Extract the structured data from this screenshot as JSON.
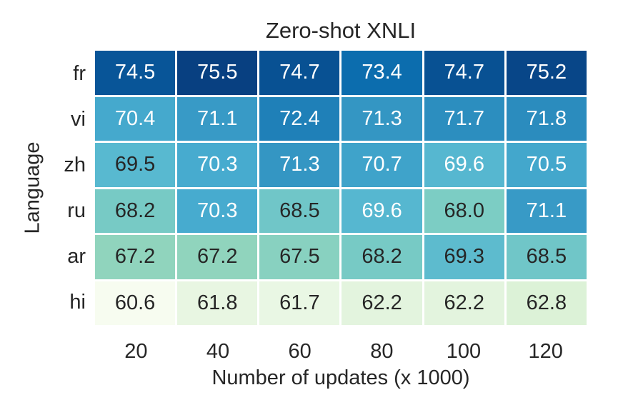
{
  "colors": {
    "background": "#ffffff",
    "text": "#262626",
    "cell_gap": "#ffffff",
    "annotation_light": "#ffffff",
    "annotation_dark": "#262626"
  },
  "chart_data": {
    "type": "heatmap",
    "title": "Zero-shot XNLI",
    "xlabel": "Number of updates (x 1000)",
    "ylabel": "Language",
    "x_categories": [
      "20",
      "40",
      "60",
      "80",
      "100",
      "120"
    ],
    "y_categories": [
      "fr",
      "vi",
      "zh",
      "ru",
      "ar",
      "hi"
    ],
    "values": [
      [
        74.5,
        75.5,
        74.7,
        73.4,
        74.7,
        75.2
      ],
      [
        70.4,
        71.1,
        72.4,
        71.3,
        71.7,
        71.8
      ],
      [
        69.5,
        70.3,
        71.3,
        70.7,
        69.6,
        70.5
      ],
      [
        68.2,
        70.3,
        68.5,
        69.6,
        68.0,
        71.1
      ],
      [
        67.2,
        67.2,
        67.5,
        68.2,
        69.3,
        68.5
      ],
      [
        60.6,
        61.8,
        61.7,
        62.2,
        62.2,
        62.8
      ]
    ],
    "value_format_decimals": 1,
    "colormap": "GnBu",
    "vmin": 60.6,
    "vmax": 75.5,
    "grid_on": false,
    "legend": "none",
    "cell_colors": [
      [
        "#085598",
        "#084081",
        "#085193",
        "#0c6dae",
        "#085193",
        "#084688"
      ],
      [
        "#45a9cd",
        "#389ac6",
        "#1f80b8",
        "#3496c3",
        "#2c8ebf",
        "#2b8cbe"
      ],
      [
        "#58b9d0",
        "#47abcf",
        "#3496c3",
        "#3fa3ca",
        "#56b7d0",
        "#43a7cc"
      ],
      [
        "#77cac5",
        "#47abcf",
        "#70c6c8",
        "#56b7d0",
        "#7ccdc4",
        "#389ac6"
      ],
      [
        "#90d4bd",
        "#90d4bd",
        "#88d1c0",
        "#77cac5",
        "#5dbbce",
        "#70c6c8"
      ],
      [
        "#f7fcf0",
        "#e8f6e2",
        "#e9f7e4",
        "#e3f4de",
        "#e3f4de",
        "#dcf2d7"
      ]
    ],
    "cell_text_colors": [
      [
        "#ffffff",
        "#ffffff",
        "#ffffff",
        "#ffffff",
        "#ffffff",
        "#ffffff"
      ],
      [
        "#ffffff",
        "#ffffff",
        "#ffffff",
        "#ffffff",
        "#ffffff",
        "#ffffff"
      ],
      [
        "#262626",
        "#ffffff",
        "#ffffff",
        "#ffffff",
        "#ffffff",
        "#ffffff"
      ],
      [
        "#262626",
        "#ffffff",
        "#262626",
        "#ffffff",
        "#262626",
        "#ffffff"
      ],
      [
        "#262626",
        "#262626",
        "#262626",
        "#262626",
        "#262626",
        "#262626"
      ],
      [
        "#262626",
        "#262626",
        "#262626",
        "#262626",
        "#262626",
        "#262626"
      ]
    ]
  }
}
